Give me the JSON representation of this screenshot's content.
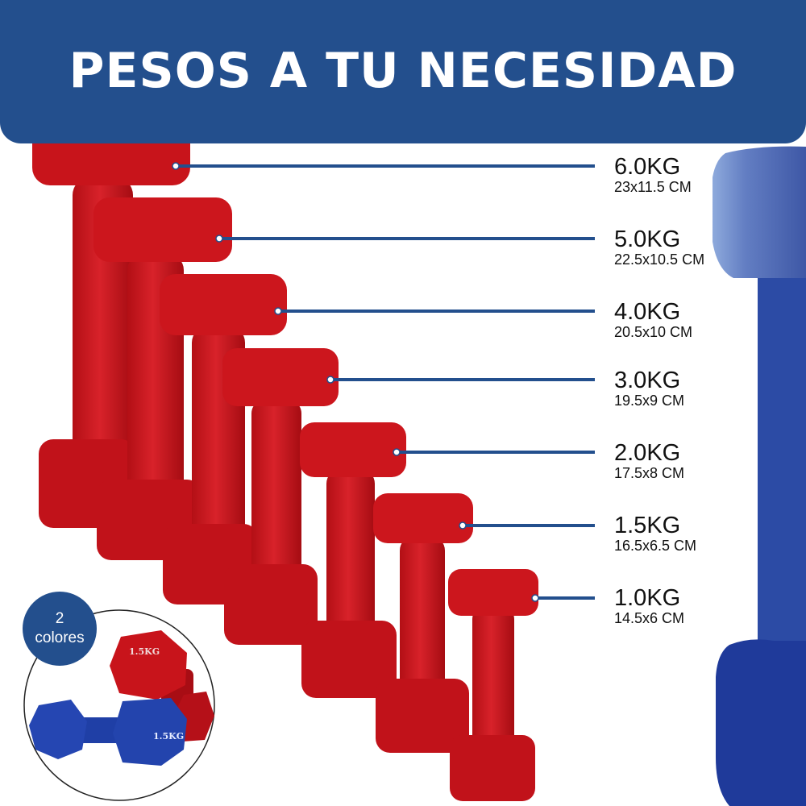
{
  "header": {
    "title": "PESOS A TU NECESIDAD"
  },
  "weights": [
    {
      "weight": "6.0KG",
      "dims": "23x11.5 CM"
    },
    {
      "weight": "5.0KG",
      "dims": "22.5x10.5 CM"
    },
    {
      "weight": "4.0KG",
      "dims": "20.5x10 CM"
    },
    {
      "weight": "3.0KG",
      "dims": "19.5x9 CM"
    },
    {
      "weight": "2.0KG",
      "dims": "17.5x8 CM"
    },
    {
      "weight": "1.5KG",
      "dims": "16.5x6.5 CM"
    },
    {
      "weight": "1.0KG",
      "dims": "14.5x6 CM"
    }
  ],
  "badge": {
    "line1": "2",
    "line2": "colores"
  },
  "inset": {
    "red_label": "1.5KG",
    "blue_label": "1.5KG"
  },
  "colors": {
    "brand_blue": "#234f8d",
    "dumbbell_red": "#c8141b",
    "dumbbell_blue": "#1f3fa6"
  }
}
